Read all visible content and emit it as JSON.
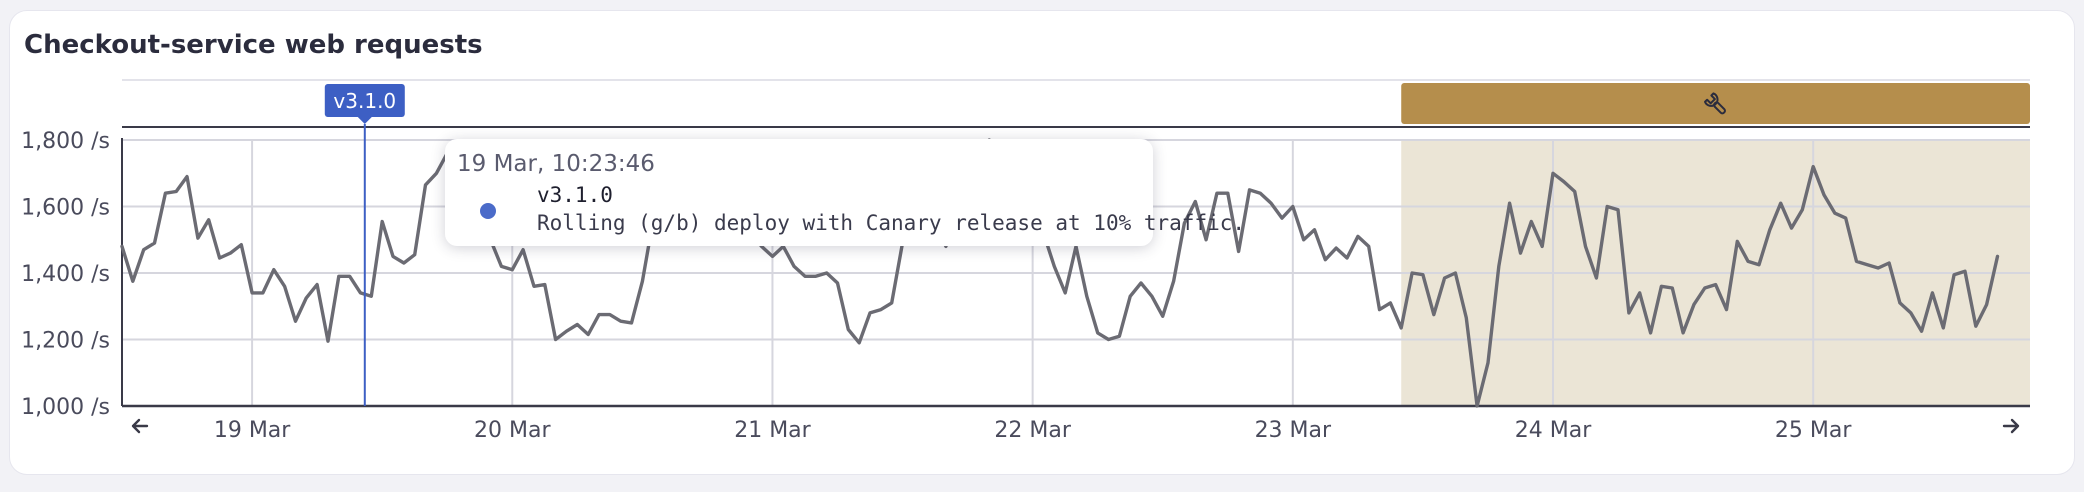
{
  "panel": {
    "title": "Checkout-service web requests"
  },
  "colors": {
    "line": "#6b6b73",
    "grid": "#d6d6de",
    "axis": "#3a3a48",
    "marker": "#3d5fc4",
    "maintenance_band": "#b58e4c",
    "maintenance_fill": "#ebe5d6",
    "tooltip_dot": "#4b6bc9"
  },
  "event_marker": {
    "label": "v3.1.0",
    "time": "2024-03-19T10:23:46"
  },
  "maintenance": {
    "icon": "wrench-icon",
    "start": "2024-03-23T10:00:00",
    "end": "2024-03-25T20:00:00"
  },
  "tooltip": {
    "time": "19 Mar, 10:23:46",
    "name": "v3.1.0",
    "description": "Rolling (g/b) deploy with Canary release at 10% traffic."
  },
  "nav": {
    "prev_icon": "arrow-left-icon",
    "next_icon": "arrow-right-icon"
  },
  "chart_data": {
    "type": "line",
    "title": "Checkout-service web requests",
    "xlabel": "",
    "ylabel": "",
    "x_range": [
      "2024-03-18T12:00:00",
      "2024-03-25T20:00:00"
    ],
    "ylim": [
      1000,
      1800
    ],
    "y_ticks": [
      1000,
      1200,
      1400,
      1600,
      1800
    ],
    "y_tick_labels": [
      "1,000 /s",
      "1,200 /s",
      "1,400 /s",
      "1,600 /s",
      "1,800 /s"
    ],
    "x_ticks": [
      "2024-03-19",
      "2024-03-20",
      "2024-03-21",
      "2024-03-22",
      "2024-03-23",
      "2024-03-24",
      "2024-03-25"
    ],
    "x_tick_labels": [
      "19 Mar",
      "20 Mar",
      "21 Mar",
      "22 Mar",
      "23 Mar",
      "24 Mar",
      "25 Mar"
    ],
    "grid": true,
    "legend": "none",
    "series": [
      {
        "start": "2024-03-18T12:00:00",
        "interval_hours": 1,
        "values": [
          1480,
          1375,
          1470,
          1490,
          1640,
          1645,
          1690,
          1505,
          1560,
          1445,
          1460,
          1485,
          1340,
          1340,
          1410,
          1360,
          1255,
          1325,
          1365,
          1195,
          1390,
          1390,
          1340,
          1330,
          1555,
          1450,
          1430,
          1455,
          1665,
          1700,
          1760,
          1730,
          1690,
          1600,
          1500,
          1420,
          1410,
          1470,
          1360,
          1365,
          1200,
          1225,
          1245,
          1215,
          1275,
          1275,
          1255,
          1250,
          1375,
          1560,
          1740,
          1780,
          1750,
          1720,
          1700,
          1650,
          1620,
          1550,
          1520,
          1480,
          1450,
          1480,
          1420,
          1390,
          1390,
          1400,
          1370,
          1230,
          1190,
          1280,
          1290,
          1310,
          1490,
          1540,
          1570,
          1560,
          1480,
          1600,
          1700,
          1760,
          1800,
          1750,
          1720,
          1680,
          1600,
          1520,
          1420,
          1340,
          1480,
          1330,
          1220,
          1200,
          1210,
          1330,
          1370,
          1330,
          1270,
          1375,
          1550,
          1615,
          1500,
          1640,
          1640,
          1465,
          1650,
          1640,
          1610,
          1565,
          1600,
          1500,
          1530,
          1440,
          1475,
          1445,
          1510,
          1480,
          1290,
          1310,
          1235,
          1400,
          1395,
          1275,
          1385,
          1400,
          1265,
          1000,
          1130,
          1420,
          1610,
          1460,
          1555,
          1480,
          1700,
          1675,
          1645,
          1480,
          1385,
          1600,
          1590,
          1280,
          1340,
          1220,
          1360,
          1355,
          1220,
          1305,
          1355,
          1365,
          1290,
          1495,
          1435,
          1425,
          1530,
          1610,
          1535,
          1590,
          1720,
          1635,
          1580,
          1565,
          1435,
          1425,
          1415,
          1430,
          1310,
          1280,
          1225,
          1340,
          1235,
          1395,
          1405,
          1240,
          1305,
          1450
        ]
      }
    ]
  }
}
